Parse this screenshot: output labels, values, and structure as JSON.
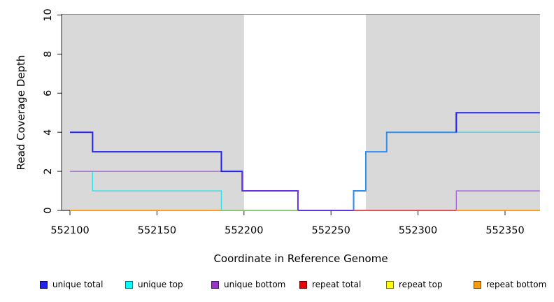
{
  "chart_data": {
    "type": "line",
    "line_style": "step-post",
    "title": "",
    "xlabel": "Coordinate in Reference Genome",
    "ylabel": "Read Coverage Depth",
    "xlim": [
      552096,
      552371
    ],
    "ylim": [
      0,
      10
    ],
    "x_ticks": [
      552100,
      552150,
      552200,
      552250,
      552300,
      552350
    ],
    "y_ticks": [
      0,
      2,
      4,
      6,
      8,
      10
    ],
    "x_end": 552370,
    "grid": false,
    "legend_position": "bottom",
    "shaded_regions": [
      {
        "x0": 552096,
        "x1": 552200
      },
      {
        "x0": 552270,
        "x1": 552371
      }
    ],
    "shaded_region_color": "#d9d9d9",
    "plot_top_border_color": "#8c8c8c",
    "series": [
      {
        "name": "unique total",
        "color": "#2424f0",
        "width": 2,
        "steps": [
          [
            552100,
            4
          ],
          [
            552113,
            3
          ],
          [
            552187,
            2
          ],
          [
            552199,
            1
          ],
          [
            552231,
            0
          ],
          [
            552263,
            1
          ],
          [
            552270,
            3
          ],
          [
            552282,
            4
          ],
          [
            552322,
            5
          ]
        ],
        "color_spans": [
          {
            "from": 552100,
            "to": 552199,
            "color": "#2424f0"
          },
          {
            "from": 552199,
            "to": 552263,
            "color": "#6233e6"
          },
          {
            "from": 552263,
            "to": 552322,
            "color": "#2d8fee"
          },
          {
            "from": 552322,
            "to": 552370,
            "color": "#2424f0"
          }
        ]
      },
      {
        "name": "unique top",
        "color": "#30e0e6",
        "width": 1.3,
        "steps": [
          [
            552100,
            2
          ],
          [
            552113,
            1
          ],
          [
            552187,
            0
          ],
          [
            552263,
            1
          ],
          [
            552270,
            3
          ],
          [
            552282,
            4
          ]
        ]
      },
      {
        "name": "unique bottom",
        "color": "#a560e0",
        "width": 1.3,
        "steps": [
          [
            552100,
            2
          ],
          [
            552199,
            1
          ],
          [
            552231,
            0
          ],
          [
            552322,
            1
          ]
        ]
      },
      {
        "name": "repeat total",
        "color": "#dd2222",
        "width": 1.3,
        "steps": [
          [
            552100,
            0
          ]
        ]
      },
      {
        "name": "repeat top",
        "color": "#eeee00",
        "width": 1.3,
        "steps": [
          [
            552100,
            0
          ]
        ]
      },
      {
        "name": "repeat bottom",
        "color": "#ff9712",
        "width": 1.5,
        "steps": [
          [
            552100,
            0
          ]
        ]
      }
    ],
    "baseline_visible_segments": [
      {
        "from": 552100,
        "to": 552187,
        "color": "#ff9712"
      },
      {
        "from": 552187,
        "to": 552231,
        "color": "#7cc87c"
      },
      {
        "from": 552263,
        "to": 552322,
        "color": "#dd3a50"
      },
      {
        "from": 552322,
        "to": 552370,
        "color": "#ff9712"
      }
    ]
  },
  "legend": {
    "items": [
      {
        "label": "unique total",
        "color": "#2222ee"
      },
      {
        "label": "unique top",
        "color": "#00ffff"
      },
      {
        "label": "unique bottom",
        "color": "#9933cc"
      },
      {
        "label": "repeat total",
        "color": "#ee0000"
      },
      {
        "label": "repeat top",
        "color": "#ffff00"
      },
      {
        "label": "repeat bottom",
        "color": "#ff9900"
      }
    ]
  }
}
